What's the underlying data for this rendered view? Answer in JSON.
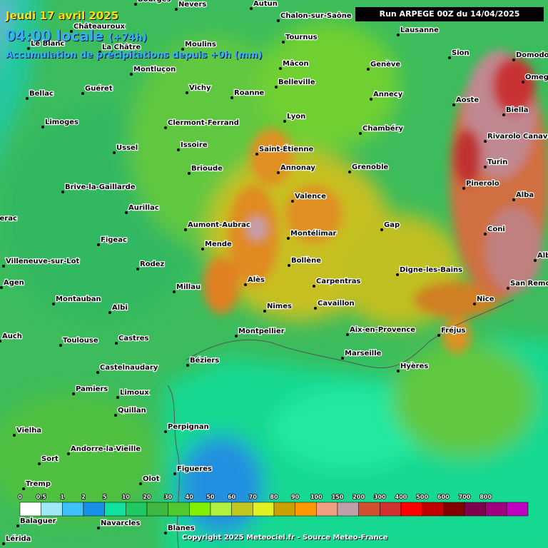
{
  "header": {
    "date": "Jeudi 17 avril 2025",
    "time": "04:00 locale",
    "offset": "(+74h)",
    "subtitle": "Accumulation de précipitations depuis +0h (mm)",
    "run": "Run ARPEGE 00Z du 14/04/2025"
  },
  "cities": [
    "Bourges",
    "Nevers",
    "Autun",
    "Chalon-sur-Saône",
    "Châteauroux",
    "Le Blanc",
    "La Châtre",
    "Moulins",
    "Tournus",
    "Lausanne",
    "Sion",
    "Domodossola",
    "Mâcon",
    "Genève",
    "Montluçon",
    "Omegna",
    "Bellac",
    "Guéret",
    "Vichy",
    "Roanne",
    "Belleville",
    "Annecy",
    "Aoste",
    "Biella",
    "Limoges",
    "Clermont-Ferrand",
    "Lyon",
    "Chambéry",
    "Rivarolo Canavese",
    "Ussel",
    "Issoire",
    "Saint-Étienne",
    "Turin",
    "Brioude",
    "Annonay",
    "Grenoble",
    "Pinerolo",
    "Brive-la-Gaillarde",
    "Valence",
    "Alba",
    "Aurillac",
    "Aumont-Aubrac",
    "Gap",
    "Coni",
    "Bergerac",
    "Figeac",
    "Montélimar",
    "Mende",
    "Villeneuve-sur-Lot",
    "Rodez",
    "Bollène",
    "Digne-les-Bains",
    "Albenga",
    "Agen",
    "Millau",
    "Alès",
    "Carpentras",
    "San Remo",
    "Montauban",
    "Albi",
    "Nîmes",
    "Cavaillon",
    "Nice",
    "Auch",
    "Toulouse",
    "Castres",
    "Montpellier",
    "Aix-en-Provence",
    "Fréjus",
    "Marseille",
    "Béziers",
    "Castelnaudary",
    "Hyères",
    "Pamiers",
    "Limoux",
    "Quillan",
    "Perpignan",
    "Vielha",
    "Andorre-la-Vieille",
    "Sort",
    "Figueres",
    "Olot",
    "Tremp",
    "Balaguer",
    "Navarcles",
    "Blanes",
    "Lérida"
  ],
  "legend": [
    0,
    0.5,
    1,
    2,
    5,
    10,
    20,
    30,
    40,
    50,
    60,
    70,
    80,
    90,
    100,
    150,
    200,
    300,
    400,
    500,
    600,
    700,
    800
  ],
  "footer": "Copyright 2025 Meteociel.fr - Source Meteo-France"
}
